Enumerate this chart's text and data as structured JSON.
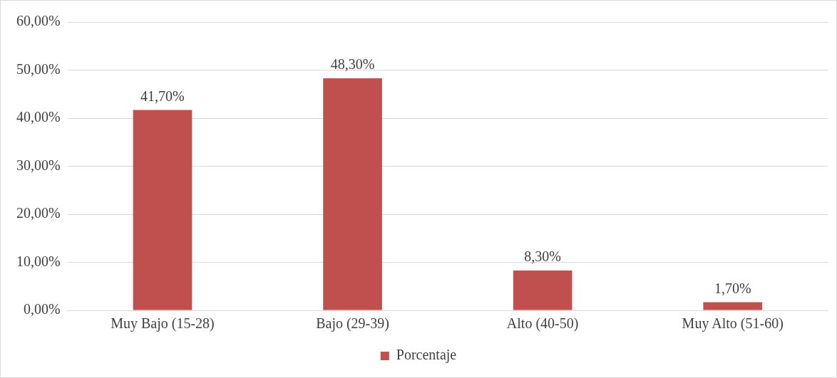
{
  "chart_data": {
    "type": "bar",
    "categories": [
      "Muy Bajo (15-28)",
      "Bajo (29-39)",
      "Alto (40-50)",
      "Muy Alto (51-60)"
    ],
    "series": [
      {
        "name": "Porcentaje",
        "color": "#c0504d",
        "values": [
          41.7,
          48.3,
          8.3,
          1.7
        ],
        "value_labels": [
          "41,70%",
          "48,30%",
          "8,30%",
          "1,70%"
        ]
      }
    ],
    "ylim": [
      0,
      60
    ],
    "yticks": [
      {
        "value": 0,
        "label": "0,00%"
      },
      {
        "value": 10,
        "label": "10,00%"
      },
      {
        "value": 20,
        "label": "20,00%"
      },
      {
        "value": 30,
        "label": "30,00%"
      },
      {
        "value": 40,
        "label": "40,00%"
      },
      {
        "value": 50,
        "label": "50,00%"
      },
      {
        "value": 60,
        "label": "60,00%"
      }
    ],
    "grid": "y",
    "legend": "bottom"
  }
}
